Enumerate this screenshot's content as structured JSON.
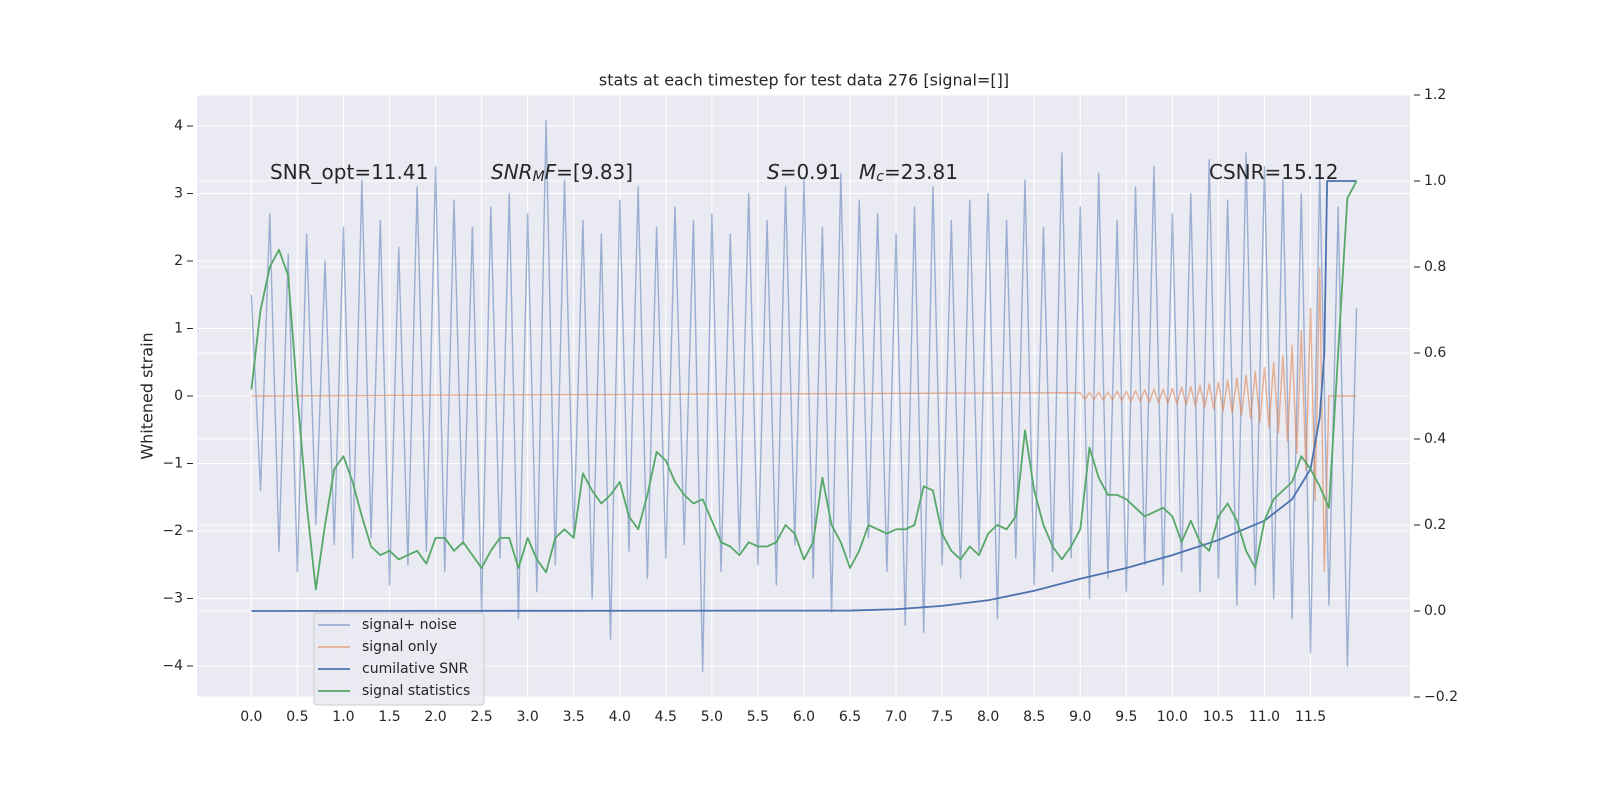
{
  "chart_data": {
    "type": "line",
    "title": "stats at each timestep for test data 276 [signal=[]]",
    "ylabel": "Whitened strain",
    "annotations": [
      {
        "runs": [
          {
            "text": "SNR_opt=11.41"
          }
        ]
      },
      {
        "runs": [
          {
            "text": "SNR",
            "italic": true
          },
          {
            "text": "M",
            "italic": true,
            "sub": true
          },
          {
            "text": "F",
            "italic": true
          },
          {
            "text": "=[9.83]"
          }
        ]
      },
      {
        "runs": [
          {
            "text": "S",
            "italic": true
          },
          {
            "text": "=0.91"
          }
        ]
      },
      {
        "runs": [
          {
            "text": "M",
            "italic": true
          },
          {
            "text": "c",
            "italic": true,
            "sub": true
          },
          {
            "text": "=23.81"
          }
        ]
      },
      {
        "runs": [
          {
            "text": "CSNR=15.12"
          }
        ]
      }
    ],
    "xlim": [
      -0.59,
      12.58
    ],
    "ylim": [
      -4.46,
      4.46
    ],
    "y2lim": [
      -0.2,
      1.2
    ],
    "xticks": [
      {
        "value": 0,
        "label": "0.0"
      },
      0.5,
      {
        "value": 1,
        "label": "1.0"
      },
      1.5,
      {
        "value": 2,
        "label": "2.0"
      },
      2.5,
      {
        "value": 3,
        "label": "3.0"
      },
      3.5,
      {
        "value": 4,
        "label": "4.0"
      },
      4.5,
      {
        "value": 5,
        "label": "5.0"
      },
      5.5,
      {
        "value": 6,
        "label": "6.0"
      },
      6.5,
      {
        "value": 7,
        "label": "7.0"
      },
      7.5,
      {
        "value": 8,
        "label": "8.0"
      },
      8.5,
      {
        "value": 9,
        "label": "9.0"
      },
      9.5,
      {
        "value": 10,
        "label": "10.0"
      },
      10.5,
      {
        "value": 11,
        "label": "11.0"
      },
      11.5
    ],
    "yticks": [
      {
        "value": -4,
        "label": "−4"
      },
      {
        "value": -3,
        "label": "−3"
      },
      {
        "value": -2,
        "label": "−2"
      },
      {
        "value": -1,
        "label": "−1"
      },
      0,
      1,
      2,
      3,
      4
    ],
    "y2ticks": [
      {
        "value": -0.2,
        "label": "−0.2"
      },
      {
        "value": 0,
        "label": "0.0"
      },
      0.2,
      0.4,
      0.6,
      0.8,
      {
        "value": 1,
        "label": "1.0"
      },
      1.2
    ],
    "grid": true,
    "legend": "lower left",
    "series": [
      {
        "name": "signal+ noise",
        "color": "#4c72b0",
        "opacity": 0.5,
        "x": [
          0,
          0.1,
          0.2,
          0.3,
          0.4,
          0.5,
          0.6,
          0.7,
          0.8,
          0.9,
          1,
          1.1,
          1.2,
          1.3,
          1.4,
          1.5,
          1.6,
          1.7,
          1.8,
          1.9,
          2,
          2.1,
          2.2,
          2.3,
          2.4,
          2.5,
          2.6,
          2.7,
          2.8,
          2.9,
          3,
          3.1,
          3.2,
          3.3,
          3.4,
          3.5,
          3.6,
          3.7,
          3.8,
          3.9,
          4,
          4.1,
          4.2,
          4.3,
          4.4,
          4.5,
          4.6,
          4.7,
          4.8,
          4.9,
          5,
          5.1,
          5.2,
          5.3,
          5.4,
          5.5,
          5.6,
          5.7,
          5.8,
          5.9,
          6,
          6.1,
          6.2,
          6.3,
          6.4,
          6.5,
          6.6,
          6.7,
          6.8,
          6.9,
          7,
          7.1,
          7.2,
          7.3,
          7.4,
          7.5,
          7.6,
          7.7,
          7.8,
          7.9,
          8,
          8.1,
          8.2,
          8.3,
          8.4,
          8.5,
          8.6,
          8.7,
          8.8,
          8.9,
          9,
          9.1,
          9.2,
          9.3,
          9.4,
          9.5,
          9.6,
          9.7,
          9.8,
          9.9,
          10,
          10.1,
          10.2,
          10.3,
          10.4,
          10.5,
          10.6,
          10.7,
          10.8,
          10.9,
          11,
          11.1,
          11.2,
          11.3,
          11.4,
          11.5,
          11.6,
          11.7,
          11.8,
          11.9,
          12
        ],
        "values": [
          1.5,
          -1.4,
          2.7,
          -2.3,
          2.1,
          -2.6,
          2.4,
          -1.9,
          2.0,
          -2.2,
          2.5,
          -2.4,
          3.2,
          -2.1,
          2.6,
          -2.8,
          2.2,
          -2.5,
          3.1,
          -2.3,
          3.4,
          -2.6,
          2.9,
          -2.2,
          2.5,
          -3.2,
          2.8,
          -2.4,
          3.0,
          -3.3,
          2.7,
          -2.9,
          4.08,
          -2.5,
          3.2,
          -2.1,
          2.6,
          -3.0,
          2.4,
          -3.6,
          2.9,
          -2.3,
          3.1,
          -2.7,
          2.5,
          -2.4,
          2.8,
          -2.2,
          2.6,
          -4.08,
          2.7,
          -2.6,
          2.4,
          -2.3,
          3.0,
          -2.5,
          2.6,
          -2.8,
          3.1,
          -2.2,
          3.2,
          -2.7,
          2.5,
          -3.2,
          3.3,
          -2.4,
          2.9,
          -2.1,
          2.7,
          -2.6,
          2.4,
          -3.4,
          2.8,
          -3.5,
          3.1,
          -2.5,
          2.6,
          -2.7,
          2.9,
          -2.3,
          3.0,
          -3.3,
          2.6,
          -2.4,
          3.2,
          -2.8,
          2.5,
          -2.6,
          3.6,
          -2.4,
          2.8,
          -3.0,
          3.3,
          -2.7,
          2.6,
          -2.9,
          3.1,
          -2.5,
          3.4,
          -2.8,
          2.7,
          -2.6,
          3.0,
          -2.9,
          3.5,
          -2.7,
          2.9,
          -3.1,
          3.6,
          -2.8,
          3.4,
          -3.0,
          3.2,
          -3.3,
          3.0,
          -3.8,
          3.3,
          -3.1,
          2.8,
          -4.0,
          1.3
        ]
      },
      {
        "name": "signal only",
        "color": "#dd8452",
        "opacity": 0.6,
        "x": [
          0,
          9,
          9.05,
          9.1,
          9.15,
          9.2,
          9.25,
          9.3,
          9.35,
          9.4,
          9.45,
          9.5,
          9.55,
          9.6,
          9.65,
          9.7,
          9.75,
          9.8,
          9.85,
          9.9,
          9.95,
          10,
          10.05,
          10.1,
          10.15,
          10.2,
          10.25,
          10.3,
          10.35,
          10.4,
          10.45,
          10.5,
          10.55,
          10.6,
          10.65,
          10.7,
          10.75,
          10.8,
          10.85,
          10.9,
          10.95,
          11,
          11.05,
          11.1,
          11.15,
          11.2,
          11.25,
          11.3,
          11.35,
          11.4,
          11.45,
          11.5,
          11.55,
          11.6,
          11.65,
          11.7,
          12
        ],
        "values": [
          0,
          0.05,
          -0.05,
          0.05,
          -0.05,
          0.06,
          -0.06,
          0.06,
          -0.06,
          0.07,
          -0.07,
          0.07,
          -0.08,
          0.08,
          -0.08,
          0.09,
          -0.09,
          0.1,
          -0.1,
          0.1,
          -0.11,
          0.11,
          -0.12,
          0.13,
          -0.13,
          0.14,
          -0.15,
          0.16,
          -0.17,
          0.18,
          -0.19,
          0.2,
          -0.22,
          0.23,
          -0.25,
          0.27,
          -0.29,
          0.31,
          -0.33,
          0.36,
          -0.39,
          0.42,
          -0.46,
          0.5,
          -0.55,
          0.6,
          -0.67,
          0.75,
          -0.85,
          0.97,
          -1.1,
          1.3,
          -1.55,
          1.9,
          -2.6,
          0,
          0
        ]
      },
      {
        "name": "cumilative SNR",
        "color": "#4c72b0",
        "opacity": 1,
        "axis": "y2",
        "x": [
          0,
          6.5,
          7,
          7.5,
          8,
          8.5,
          9,
          9.5,
          10,
          10.5,
          11,
          11.3,
          11.5,
          11.6,
          11.65,
          11.68,
          12
        ],
        "values": [
          0,
          0.001,
          0.004,
          0.012,
          0.025,
          0.047,
          0.075,
          0.1,
          0.13,
          0.165,
          0.21,
          0.26,
          0.33,
          0.45,
          0.6,
          1.0,
          1.0
        ]
      },
      {
        "name": "signal statistics",
        "color": "#55a868",
        "opacity": 1,
        "axis": "y2",
        "x": [
          0,
          0.1,
          0.2,
          0.3,
          0.4,
          0.5,
          0.6,
          0.7,
          0.8,
          0.9,
          1,
          1.1,
          1.2,
          1.3,
          1.4,
          1.5,
          1.6,
          1.7,
          1.8,
          1.9,
          2,
          2.1,
          2.2,
          2.3,
          2.4,
          2.5,
          2.6,
          2.7,
          2.8,
          2.9,
          3,
          3.1,
          3.2,
          3.3,
          3.4,
          3.5,
          3.6,
          3.7,
          3.8,
          3.9,
          4,
          4.1,
          4.2,
          4.3,
          4.4,
          4.5,
          4.6,
          4.7,
          4.8,
          4.9,
          5,
          5.1,
          5.2,
          5.3,
          5.4,
          5.5,
          5.6,
          5.7,
          5.8,
          5.9,
          6,
          6.1,
          6.2,
          6.3,
          6.4,
          6.5,
          6.6,
          6.7,
          6.8,
          6.9,
          7,
          7.1,
          7.2,
          7.3,
          7.4,
          7.5,
          7.6,
          7.7,
          7.8,
          7.9,
          8,
          8.1,
          8.2,
          8.3,
          8.4,
          8.5,
          8.6,
          8.7,
          8.8,
          8.9,
          9,
          9.1,
          9.2,
          9.3,
          9.4,
          9.5,
          9.6,
          9.7,
          9.8,
          9.9,
          10,
          10.1,
          10.2,
          10.3,
          10.4,
          10.5,
          10.6,
          10.7,
          10.8,
          10.9,
          11,
          11.1,
          11.2,
          11.3,
          11.4,
          11.5,
          11.6,
          11.7,
          11.8,
          11.9,
          12
        ],
        "values": [
          0.515,
          0.7,
          0.8,
          0.84,
          0.78,
          0.5,
          0.25,
          0.05,
          0.2,
          0.33,
          0.36,
          0.3,
          0.22,
          0.15,
          0.13,
          0.14,
          0.12,
          0.13,
          0.14,
          0.11,
          0.17,
          0.17,
          0.14,
          0.16,
          0.13,
          0.1,
          0.14,
          0.17,
          0.17,
          0.1,
          0.17,
          0.12,
          0.09,
          0.17,
          0.19,
          0.17,
          0.32,
          0.28,
          0.25,
          0.27,
          0.3,
          0.22,
          0.19,
          0.27,
          0.37,
          0.35,
          0.3,
          0.27,
          0.25,
          0.26,
          0.21,
          0.16,
          0.15,
          0.13,
          0.16,
          0.15,
          0.15,
          0.16,
          0.2,
          0.18,
          0.12,
          0.16,
          0.31,
          0.2,
          0.16,
          0.1,
          0.14,
          0.2,
          0.19,
          0.18,
          0.19,
          0.19,
          0.2,
          0.29,
          0.28,
          0.18,
          0.14,
          0.12,
          0.15,
          0.13,
          0.18,
          0.2,
          0.19,
          0.22,
          0.42,
          0.28,
          0.2,
          0.15,
          0.12,
          0.15,
          0.19,
          0.38,
          0.31,
          0.27,
          0.27,
          0.26,
          0.24,
          0.22,
          0.23,
          0.24,
          0.22,
          0.16,
          0.21,
          0.16,
          0.14,
          0.22,
          0.25,
          0.21,
          0.14,
          0.1,
          0.21,
          0.26,
          0.28,
          0.3,
          0.36,
          0.33,
          0.29,
          0.24,
          0.6,
          0.96,
          1.0
        ]
      }
    ]
  }
}
